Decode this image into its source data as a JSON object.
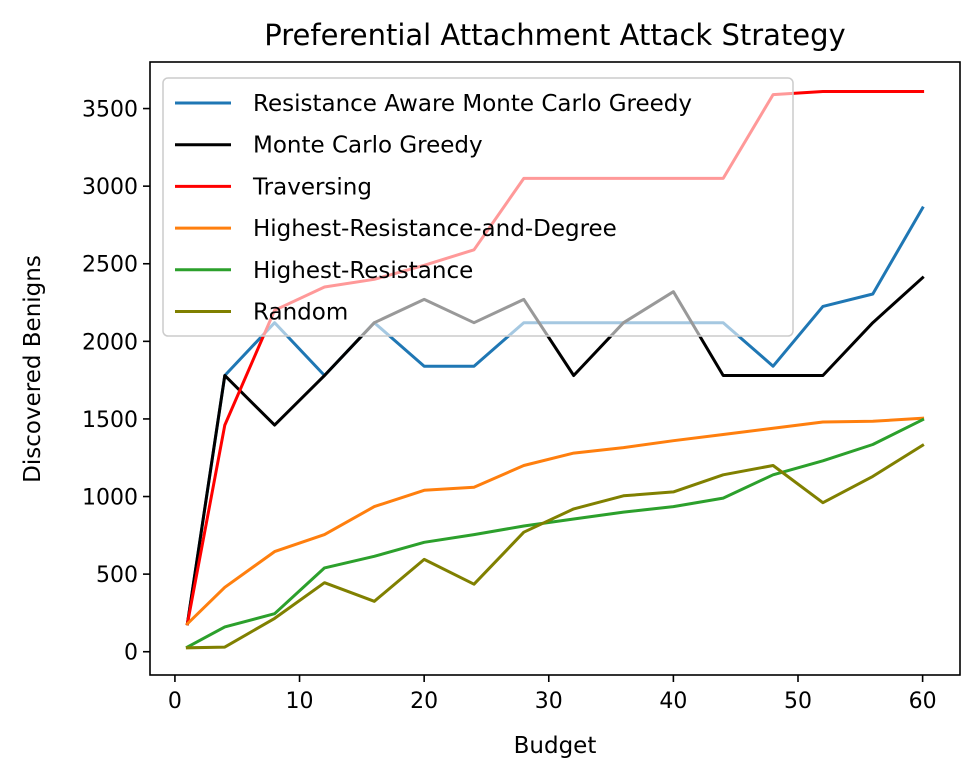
{
  "chart_data": {
    "type": "line",
    "title": "Preferential Attachment Attack Strategy",
    "xlabel": "Budget",
    "ylabel": "Discovered Benigns",
    "xlim": [
      -2,
      63
    ],
    "ylim": [
      -150,
      3800
    ],
    "xticks": [
      0,
      10,
      20,
      30,
      40,
      50,
      60
    ],
    "yticks": [
      0,
      500,
      1000,
      1500,
      2000,
      2500,
      3000,
      3500
    ],
    "x": [
      1,
      4,
      8,
      12,
      16,
      20,
      24,
      28,
      32,
      36,
      40,
      44,
      48,
      52,
      56,
      60
    ],
    "series": [
      {
        "name": "Resistance Aware Monte Carlo Greedy",
        "color": "#1f77b4",
        "values": [
          180,
          1780,
          2120,
          1780,
          2120,
          1840,
          1840,
          2120,
          2120,
          2120,
          2120,
          2120,
          1840,
          2225,
          2305,
          2860
        ]
      },
      {
        "name": "Monte Carlo Greedy",
        "color": "#000000",
        "values": [
          180,
          1780,
          1460,
          1780,
          2120,
          2270,
          2120,
          2270,
          1780,
          2120,
          2320,
          1780,
          1780,
          1780,
          2120,
          2410
        ]
      },
      {
        "name": "Traversing",
        "color": "#ff0000",
        "values": [
          180,
          1460,
          2200,
          2350,
          2400,
          2490,
          2590,
          3050,
          3050,
          3050,
          3050,
          3050,
          3590,
          3610,
          3610,
          3610
        ]
      },
      {
        "name": "Highest-Resistance-and-Degree",
        "color": "#ff7f0e",
        "values": [
          180,
          415,
          645,
          755,
          935,
          1040,
          1060,
          1200,
          1280,
          1315,
          1360,
          1400,
          1440,
          1480,
          1485,
          1505
        ]
      },
      {
        "name": "Highest-Resistance",
        "color": "#2ca02c",
        "values": [
          30,
          160,
          245,
          540,
          615,
          705,
          755,
          810,
          855,
          900,
          935,
          990,
          1140,
          1230,
          1335,
          1495
        ]
      },
      {
        "name": "Random",
        "color": "#808000",
        "values": [
          25,
          30,
          215,
          445,
          325,
          595,
          435,
          770,
          920,
          1005,
          1030,
          1140,
          1200,
          960,
          1130,
          1330
        ]
      }
    ],
    "legend": {
      "placement": "top-left"
    }
  }
}
